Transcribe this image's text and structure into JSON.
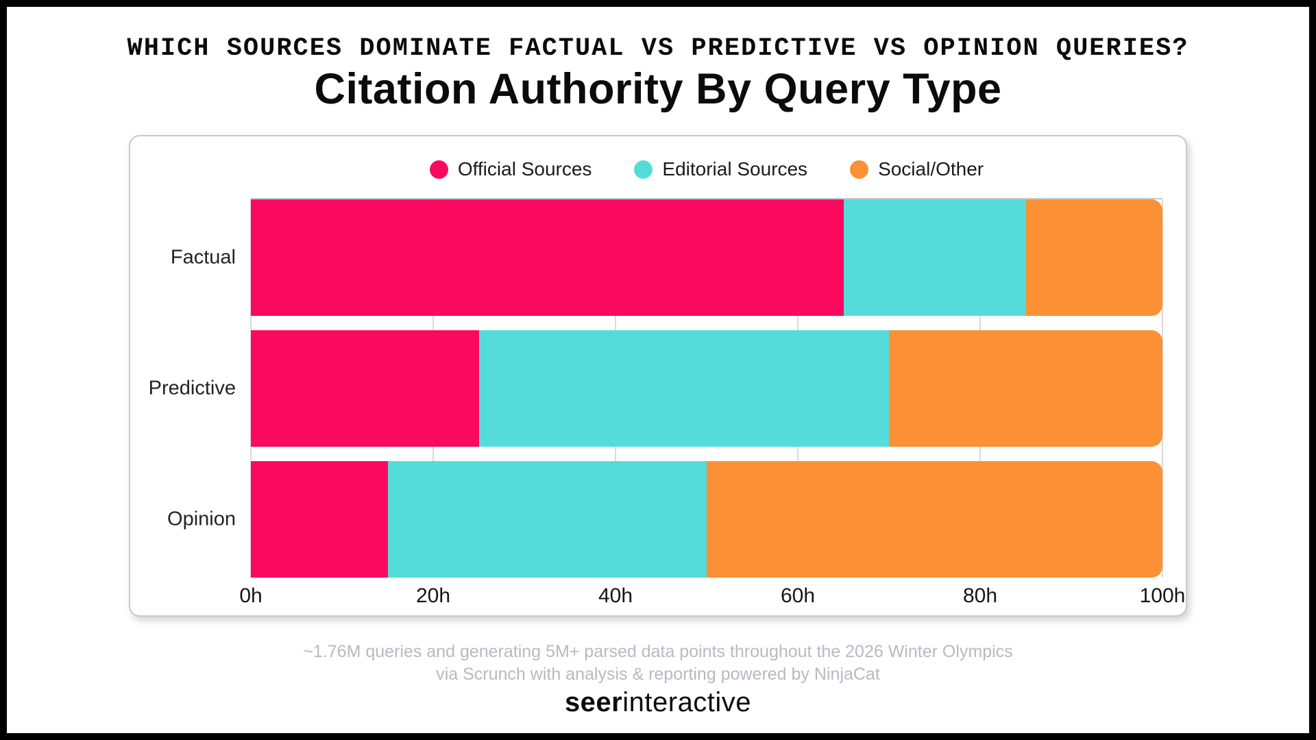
{
  "header": {
    "kicker": "WHICH SOURCES DOMINATE FACTUAL VS PREDICTIVE VS OPINION QUERIES?",
    "title": "Citation Authority By Query Type"
  },
  "chart_data": {
    "type": "bar",
    "orientation": "horizontal",
    "stacked": true,
    "title": "Citation Authority By Query Type",
    "categories": [
      "Factual",
      "Predictive",
      "Opinion"
    ],
    "series": [
      {
        "name": "Official Sources",
        "color": "#FA0A5F",
        "values": [
          65,
          25,
          15
        ]
      },
      {
        "name": "Editorial Sources",
        "color": "#54DCDB",
        "values": [
          20,
          45,
          35
        ]
      },
      {
        "name": "Social/Other",
        "color": "#FB9134",
        "values": [
          15,
          30,
          50
        ]
      }
    ],
    "xlim": [
      0,
      100
    ],
    "x_tick_values": [
      0,
      20,
      40,
      60,
      80,
      100
    ],
    "x_tick_labels": [
      "0h",
      "20h",
      "40h",
      "60h",
      "80h",
      "100h"
    ],
    "legend_position": "top-center",
    "grid": "vertical"
  },
  "footer": {
    "line1": "~1.76M queries and generating 5M+ parsed data points throughout the 2026 Winter Olympics",
    "line2": "via Scrunch with analysis & reporting powered by NinjaCat"
  },
  "brand": {
    "bold": "seer",
    "regular": "interactive"
  },
  "colors": {
    "official": "#FA0A5F",
    "editorial": "#54DCDB",
    "social": "#FB9134",
    "footer_text": "#B9B8C4",
    "card_border": "#C9C9CF",
    "gridline": "#D9D9DC",
    "background": "#FFFFFF",
    "frame": "#000000"
  }
}
